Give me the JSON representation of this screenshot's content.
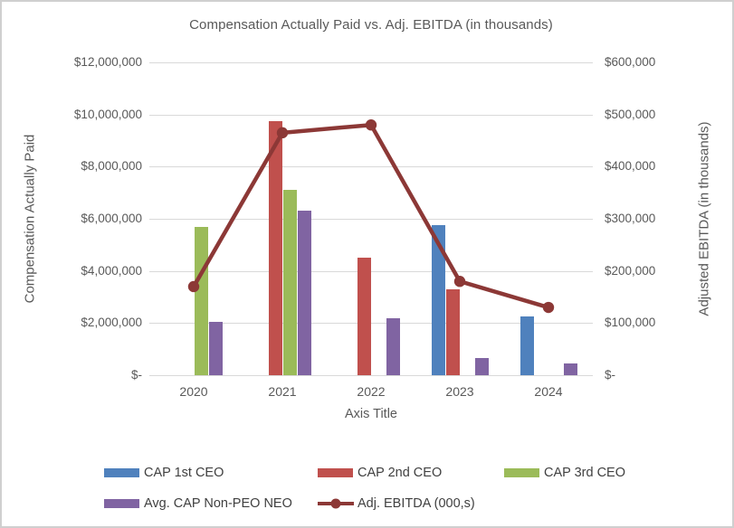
{
  "chart": {
    "title": "Compensation Actually Paid vs. Adj. EBITDA (in thousands)",
    "left_axis_title": "Compensation Actually Paid",
    "right_axis_title": "Adjusted EBITDA (in thousands)",
    "x_axis_title": "Axis Title"
  },
  "chart_data": {
    "type": "combo-bar-line",
    "title": "Compensation Actually Paid vs. Adj. EBITDA (in thousands)",
    "categories": [
      "2020",
      "2021",
      "2022",
      "2023",
      "2024"
    ],
    "series": [
      {
        "name": "CAP 1st CEO",
        "type": "bar",
        "color": "#4F81BD",
        "axis": "left",
        "values": [
          0,
          0,
          0,
          5750000,
          2250000
        ]
      },
      {
        "name": "CAP 2nd CEO",
        "type": "bar",
        "color": "#C0504D",
        "axis": "left",
        "values": [
          0,
          9750000,
          4500000,
          3300000,
          0
        ]
      },
      {
        "name": "CAP 3rd CEO",
        "type": "bar",
        "color": "#9BBB59",
        "axis": "left",
        "values": [
          5700000,
          7100000,
          0,
          0,
          0
        ]
      },
      {
        "name": "Avg. CAP Non-PEO NEO",
        "type": "bar",
        "color": "#8064A2",
        "axis": "left",
        "values": [
          2050000,
          6300000,
          2200000,
          650000,
          450000
        ]
      },
      {
        "name": "Adj. EBITDA (000,s)",
        "type": "line",
        "color": "#8C3836",
        "axis": "right",
        "values": [
          170000,
          465000,
          480000,
          180000,
          130000
        ]
      }
    ],
    "left_axis": {
      "title": "Compensation Actually Paid",
      "min": 0,
      "max": 12000000,
      "step": 2000000,
      "tick_labels": [
        "$12,000,000",
        "$10,000,000",
        "$8,000,000",
        "$6,000,000",
        "$4,000,000",
        "$2,000,000",
        "$-"
      ]
    },
    "right_axis": {
      "title": "Adjusted EBITDA (in thousands)",
      "min": 0,
      "max": 600000,
      "step": 100000,
      "tick_labels": [
        "$600,000",
        "$500,000",
        "$400,000",
        "$300,000",
        "$200,000",
        "$100,000",
        "$-"
      ]
    },
    "x_axis": {
      "title": "Axis Title"
    },
    "grid": true,
    "legend_position": "bottom",
    "legend": [
      {
        "label": "CAP 1st CEO",
        "color": "#4F81BD",
        "kind": "bar"
      },
      {
        "label": "CAP 2nd CEO",
        "color": "#C0504D",
        "kind": "bar"
      },
      {
        "label": "CAP 3rd CEO",
        "color": "#9BBB59",
        "kind": "bar"
      },
      {
        "label": "Avg. CAP Non-PEO NEO",
        "color": "#8064A2",
        "kind": "bar"
      },
      {
        "label": "Adj. EBITDA (000,s)",
        "color": "#8C3836",
        "kind": "line"
      }
    ],
    "colors": {
      "grid": "#d9d9d9",
      "axis_text": "#595959",
      "legend_text": "#404040",
      "frame_border": "#cfcfcf"
    }
  }
}
